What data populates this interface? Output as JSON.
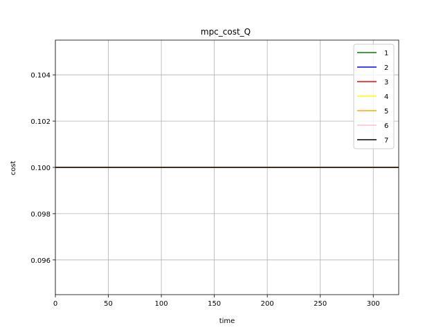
{
  "chart_data": {
    "type": "line",
    "title": "mpc_cost_Q",
    "xlabel": "time",
    "ylabel": "cost",
    "xlim": [
      0,
      324
    ],
    "ylim": [
      0.0945,
      0.1055
    ],
    "xticks": [
      0,
      50,
      100,
      150,
      200,
      250,
      300
    ],
    "xtick_labels": [
      "0",
      "50",
      "100",
      "150",
      "200",
      "250",
      "300"
    ],
    "yticks": [
      0.096,
      0.098,
      0.1,
      0.102,
      0.104
    ],
    "ytick_labels": [
      "0.096",
      "0.098",
      "0.100",
      "0.102",
      "0.104"
    ],
    "grid": true,
    "legend_position": "top-right",
    "series": [
      {
        "name": "1",
        "color": "#008000",
        "x": [
          0,
          324
        ],
        "y": [
          0.1,
          0.1
        ]
      },
      {
        "name": "2",
        "color": "#0000ff",
        "x": [
          0,
          324
        ],
        "y": [
          0.1,
          0.1
        ]
      },
      {
        "name": "3",
        "color": "#ff0000",
        "x": [
          0,
          324
        ],
        "y": [
          0.1,
          0.1
        ]
      },
      {
        "name": "4",
        "color": "#ffff00",
        "x": [
          0,
          324
        ],
        "y": [
          0.1,
          0.1
        ]
      },
      {
        "name": "5",
        "color": "#ffa500",
        "x": [
          0,
          324
        ],
        "y": [
          0.1,
          0.1
        ]
      },
      {
        "name": "6",
        "color": "#ffc0cb",
        "x": [
          0,
          324
        ],
        "y": [
          0.1,
          0.1
        ]
      },
      {
        "name": "7",
        "color": "#000000",
        "x": [
          0,
          324
        ],
        "y": [
          0.1,
          0.1
        ]
      }
    ]
  }
}
